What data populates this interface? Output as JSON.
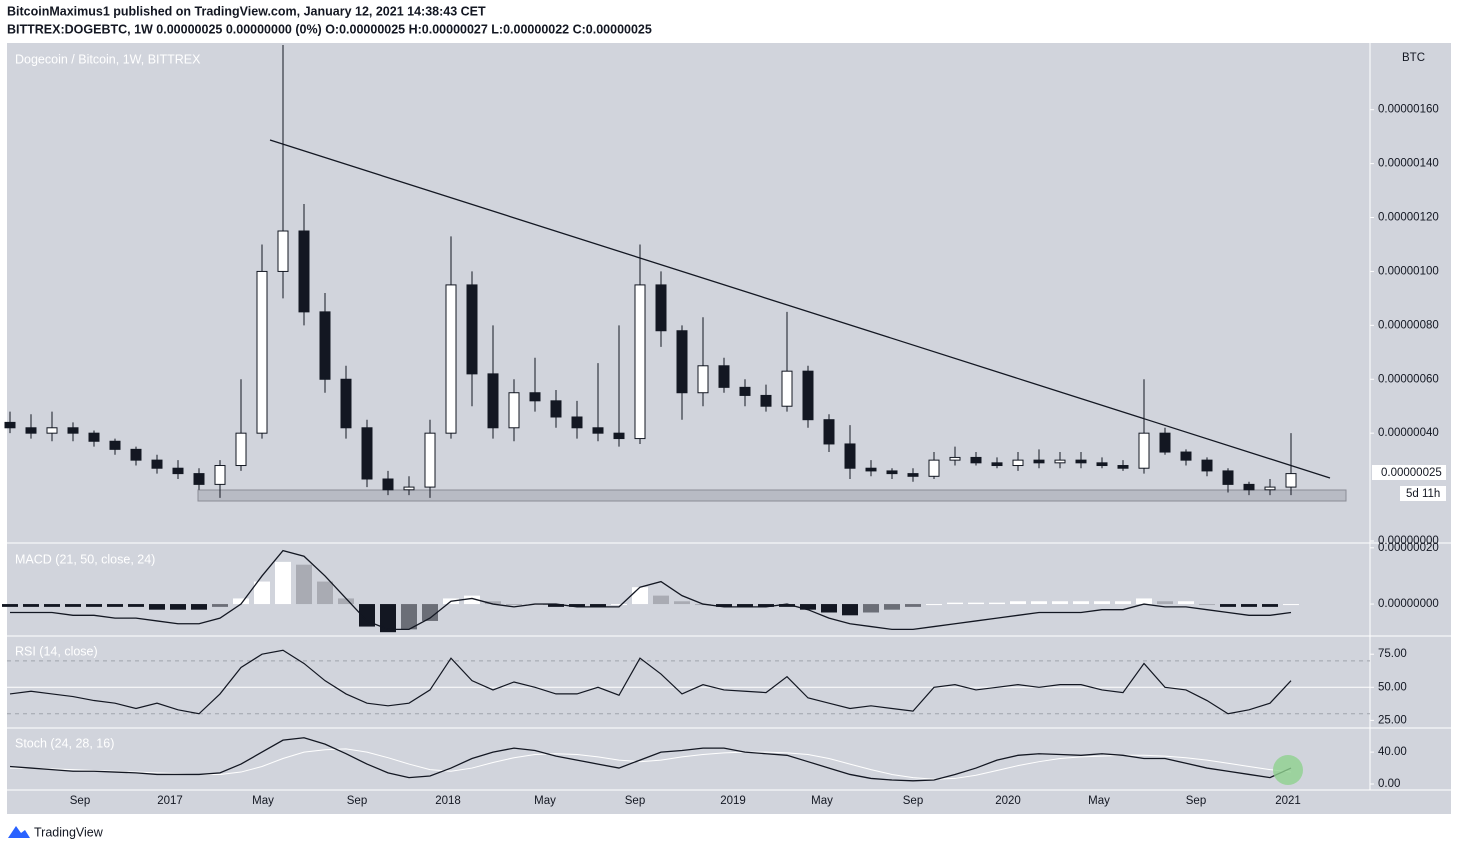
{
  "header": {
    "line1": "BitcoinMaximus1 published on TradingView.com, January 12, 2021 14:38:43 CET",
    "line2": "BITTREX:DOGEBTC, 1W  0.00000025 0.00000000 (0%) O:0.00000025 H:0.00000027 L:0.00000022 C:0.00000025"
  },
  "x_axis_labels": [
    "Sep",
    "2017",
    "May",
    "Sep",
    "2018",
    "May",
    "Sep",
    "2019",
    "May",
    "Sep",
    "2020",
    "May",
    "Sep",
    "2021"
  ],
  "price_axis_unit": "BTC",
  "last_price_label": "0.00000025",
  "countdown": "5d 11h",
  "brand": "TradingView",
  "chart_data": [
    {
      "type": "candlestick",
      "title": "Dogecoin / Bitcoin, 1W, BITTREX",
      "open": [
        4.4e-07,
        4.2e-07,
        4e-07,
        4.2e-07,
        4e-07,
        3.7e-07,
        3.4e-07,
        3e-07,
        2.7e-07,
        2.5e-07,
        2.1e-07,
        2.8e-07,
        4e-07,
        1e-06,
        1.15e-06,
        8.5e-07,
        6e-07,
        4.2e-07,
        2.3e-07,
        1.9e-07,
        2e-07,
        4e-07,
        9.5e-07,
        6.2e-07,
        4.2e-07,
        5.5e-07,
        5.2e-07,
        4.6e-07,
        4.2e-07,
        4e-07,
        3.8e-07,
        9.5e-07,
        7.8e-07,
        5.5e-07,
        6.5e-07,
        5.7e-07,
        5.4e-07,
        5e-07,
        6.3e-07,
        4.5e-07,
        3.6e-07,
        2.7e-07,
        2.6e-07,
        2.5e-07,
        2.4e-07,
        3e-07,
        3.1e-07,
        2.9e-07,
        2.8e-07,
        3e-07,
        2.9e-07,
        3e-07,
        2.9e-07,
        2.8e-07,
        2.7e-07,
        4e-07,
        3.3e-07,
        3e-07,
        2.6e-07,
        2.1e-07,
        1.9e-07,
        2e-07
      ],
      "high": [
        4.8e-07,
        4.7e-07,
        4.8e-07,
        4.4e-07,
        4.1e-07,
        3.8e-07,
        3.5e-07,
        3.2e-07,
        3e-07,
        2.7e-07,
        3e-07,
        6e-07,
        1.1e-06,
        1.84e-06,
        1.25e-06,
        9.2e-07,
        6.5e-07,
        4.5e-07,
        2.6e-07,
        2.4e-07,
        4.5e-07,
        1.13e-06,
        1e-06,
        8e-07,
        6e-07,
        6.8e-07,
        5.6e-07,
        5.2e-07,
        6.6e-07,
        8e-07,
        1.1e-06,
        1e-06,
        8e-07,
        8.3e-07,
        6.8e-07,
        6e-07,
        5.8e-07,
        8.5e-07,
        6.5e-07,
        4.7e-07,
        4.3e-07,
        3e-07,
        2.7e-07,
        2.7e-07,
        3.3e-07,
        3.5e-07,
        3.3e-07,
        3.1e-07,
        3.3e-07,
        3.4e-07,
        3.3e-07,
        3.3e-07,
        3.1e-07,
        3e-07,
        6e-07,
        4.2e-07,
        3.4e-07,
        3.1e-07,
        2.7e-07,
        2.2e-07,
        2.3e-07,
        4e-07
      ],
      "low": [
        4e-07,
        3.8e-07,
        3.7e-07,
        3.7e-07,
        3.5e-07,
        3.2e-07,
        2.8e-07,
        2.5e-07,
        2.3e-07,
        1.9e-07,
        1.6e-07,
        2.6e-07,
        3.8e-07,
        9e-07,
        8e-07,
        5.5e-07,
        3.8e-07,
        2e-07,
        1.7e-07,
        1.7e-07,
        1.6e-07,
        3.8e-07,
        5e-07,
        3.8e-07,
        3.7e-07,
        4.8e-07,
        4.2e-07,
        3.8e-07,
        3.7e-07,
        3.5e-07,
        3.6e-07,
        7.2e-07,
        4.5e-07,
        5e-07,
        5.5e-07,
        5e-07,
        4.8e-07,
        4.8e-07,
        4.2e-07,
        3.3e-07,
        2.3e-07,
        2.4e-07,
        2.3e-07,
        2.2e-07,
        2.3e-07,
        2.8e-07,
        2.8e-07,
        2.7e-07,
        2.6e-07,
        2.7e-07,
        2.7e-07,
        2.7e-07,
        2.7e-07,
        2.6e-07,
        2.5e-07,
        3.2e-07,
        2.8e-07,
        2.4e-07,
        1.8e-07,
        1.7e-07,
        1.7e-07,
        1.7e-07
      ],
      "close": [
        4.2e-07,
        4e-07,
        4.2e-07,
        4e-07,
        3.7e-07,
        3.4e-07,
        3e-07,
        2.7e-07,
        2.5e-07,
        2.1e-07,
        2.8e-07,
        4e-07,
        1e-06,
        1.15e-06,
        8.5e-07,
        6e-07,
        4.2e-07,
        2.3e-07,
        1.9e-07,
        2e-07,
        4e-07,
        9.5e-07,
        6.2e-07,
        4.2e-07,
        5.5e-07,
        5.2e-07,
        4.6e-07,
        4.2e-07,
        4e-07,
        3.8e-07,
        9.5e-07,
        7.8e-07,
        5.5e-07,
        6.5e-07,
        5.7e-07,
        5.4e-07,
        5e-07,
        6.3e-07,
        4.5e-07,
        3.6e-07,
        2.7e-07,
        2.6e-07,
        2.5e-07,
        2.4e-07,
        3e-07,
        3.1e-07,
        2.9e-07,
        2.8e-07,
        3e-07,
        2.9e-07,
        3e-07,
        2.9e-07,
        2.8e-07,
        2.7e-07,
        4e-07,
        3.3e-07,
        3e-07,
        2.6e-07,
        2.1e-07,
        1.9e-07,
        2e-07,
        2.5e-07
      ],
      "ylim": [
        0,
        1.84e-06
      ],
      "yticks": [
        {
          "value": 1.6e-06,
          "label": "0.00000160"
        },
        {
          "value": 1.4e-06,
          "label": "0.00000140"
        },
        {
          "value": 1.2e-06,
          "label": "0.00000120"
        },
        {
          "value": 1e-06,
          "label": "0.00000100"
        },
        {
          "value": 8e-07,
          "label": "0.00000080"
        },
        {
          "value": 6e-07,
          "label": "0.00000060"
        },
        {
          "value": 4e-07,
          "label": "0.00000040"
        },
        {
          "value": 0,
          "label": "0.00000000"
        }
      ]
    },
    {
      "type": "macd",
      "title": "MACD (21, 50, close, 24)",
      "histogram": [
        -1e-08,
        -1e-08,
        -1e-08,
        -1e-08,
        -1e-08,
        -1e-08,
        -1e-08,
        -2e-08,
        -2e-08,
        -2e-08,
        -1e-08,
        2e-08,
        8e-08,
        1.5e-07,
        1.4e-07,
        8e-08,
        2e-08,
        -8e-08,
        -1e-07,
        -9e-08,
        -6e-08,
        2e-08,
        3e-08,
        1e-08,
        0,
        0,
        -1e-08,
        -1e-08,
        -1e-08,
        0,
        6e-08,
        3e-08,
        1e-08,
        0,
        -1e-08,
        -1e-08,
        -1e-08,
        -1e-08,
        -2e-08,
        -3e-08,
        -4e-08,
        -3e-08,
        -2e-08,
        -1e-08,
        0,
        5e-09,
        5e-09,
        5e-09,
        1e-08,
        1e-08,
        1e-08,
        1e-08,
        1e-08,
        1e-08,
        2e-08,
        1e-08,
        1e-08,
        0,
        -1e-08,
        -1e-08,
        -1e-08,
        0
      ],
      "line": [
        -3e-08,
        -3e-08,
        -3e-08,
        -4e-08,
        -4e-08,
        -5e-08,
        -5e-08,
        -6e-08,
        -7e-08,
        -7e-08,
        -5e-08,
        0,
        1e-07,
        1.9e-07,
        1.7e-07,
        1e-07,
        2e-08,
        -6e-08,
        -9e-08,
        -9e-08,
        -5e-08,
        1e-08,
        2e-08,
        0,
        -1e-08,
        0,
        0,
        -1e-08,
        -1e-08,
        -1e-08,
        6e-08,
        8e-08,
        3e-08,
        0,
        -1e-08,
        -1e-08,
        -1e-08,
        0,
        -2e-08,
        -5e-08,
        -7e-08,
        -8e-08,
        -9e-08,
        -9e-08,
        -8e-08,
        -7e-08,
        -6e-08,
        -5e-08,
        -4e-08,
        -3e-08,
        -3e-08,
        -3e-08,
        -2e-08,
        -2e-08,
        0,
        -1e-08,
        -1e-08,
        -2e-08,
        -3e-08,
        -4e-08,
        -4e-08,
        -3e-08
      ],
      "ylim": [
        -1.1e-07,
        2.1e-07
      ],
      "yticks": [
        {
          "value": 2e-07,
          "label": "0.00000020"
        },
        {
          "value": 0,
          "label": "0.00000000"
        }
      ]
    },
    {
      "type": "rsi",
      "title": "RSI (14, close)",
      "values": [
        45,
        47,
        45,
        43,
        40,
        38,
        34,
        38,
        33,
        30,
        45,
        65,
        75,
        78,
        68,
        55,
        45,
        38,
        36,
        38,
        48,
        72,
        55,
        48,
        54,
        50,
        45,
        45,
        50,
        44,
        72,
        60,
        45,
        52,
        48,
        47,
        46,
        58,
        42,
        38,
        34,
        36,
        34,
        32,
        50,
        52,
        48,
        50,
        52,
        50,
        52,
        52,
        48,
        46,
        68,
        50,
        48,
        40,
        30,
        33,
        38,
        55
      ],
      "levels": [
        70,
        50,
        30
      ],
      "ylim": [
        20,
        88
      ],
      "yticks": [
        {
          "value": 75,
          "label": "75.00"
        },
        {
          "value": 50,
          "label": "50.00"
        },
        {
          "value": 25,
          "label": "25.00"
        }
      ]
    },
    {
      "type": "stoch",
      "title": "Stoch (24, 28, 16)",
      "k": [
        22,
        20,
        18,
        16,
        16,
        15,
        14,
        12,
        12,
        12,
        14,
        25,
        40,
        55,
        58,
        50,
        38,
        25,
        14,
        8,
        10,
        20,
        32,
        40,
        45,
        42,
        35,
        30,
        25,
        20,
        30,
        40,
        42,
        45,
        45,
        40,
        38,
        36,
        28,
        20,
        12,
        7,
        5,
        4,
        5,
        12,
        20,
        30,
        36,
        38,
        37,
        36,
        38,
        36,
        32,
        32,
        26,
        20,
        16,
        12,
        8,
        20
      ],
      "d": [
        20,
        20,
        19,
        18,
        17,
        16,
        15,
        14,
        13,
        12,
        12,
        15,
        22,
        32,
        40,
        43,
        44,
        40,
        33,
        25,
        18,
        16,
        20,
        27,
        33,
        37,
        38,
        37,
        34,
        30,
        28,
        30,
        34,
        37,
        39,
        40,
        40,
        39,
        37,
        32,
        25,
        18,
        12,
        8,
        6,
        7,
        11,
        17,
        23,
        28,
        32,
        34,
        35,
        36,
        36,
        35,
        33,
        30,
        26,
        22,
        18,
        15
      ],
      "ylim": [
        -5,
        69
      ],
      "yticks": [
        {
          "value": 40,
          "label": "40.00"
        },
        {
          "value": 0,
          "label": "0.00"
        }
      ]
    }
  ]
}
